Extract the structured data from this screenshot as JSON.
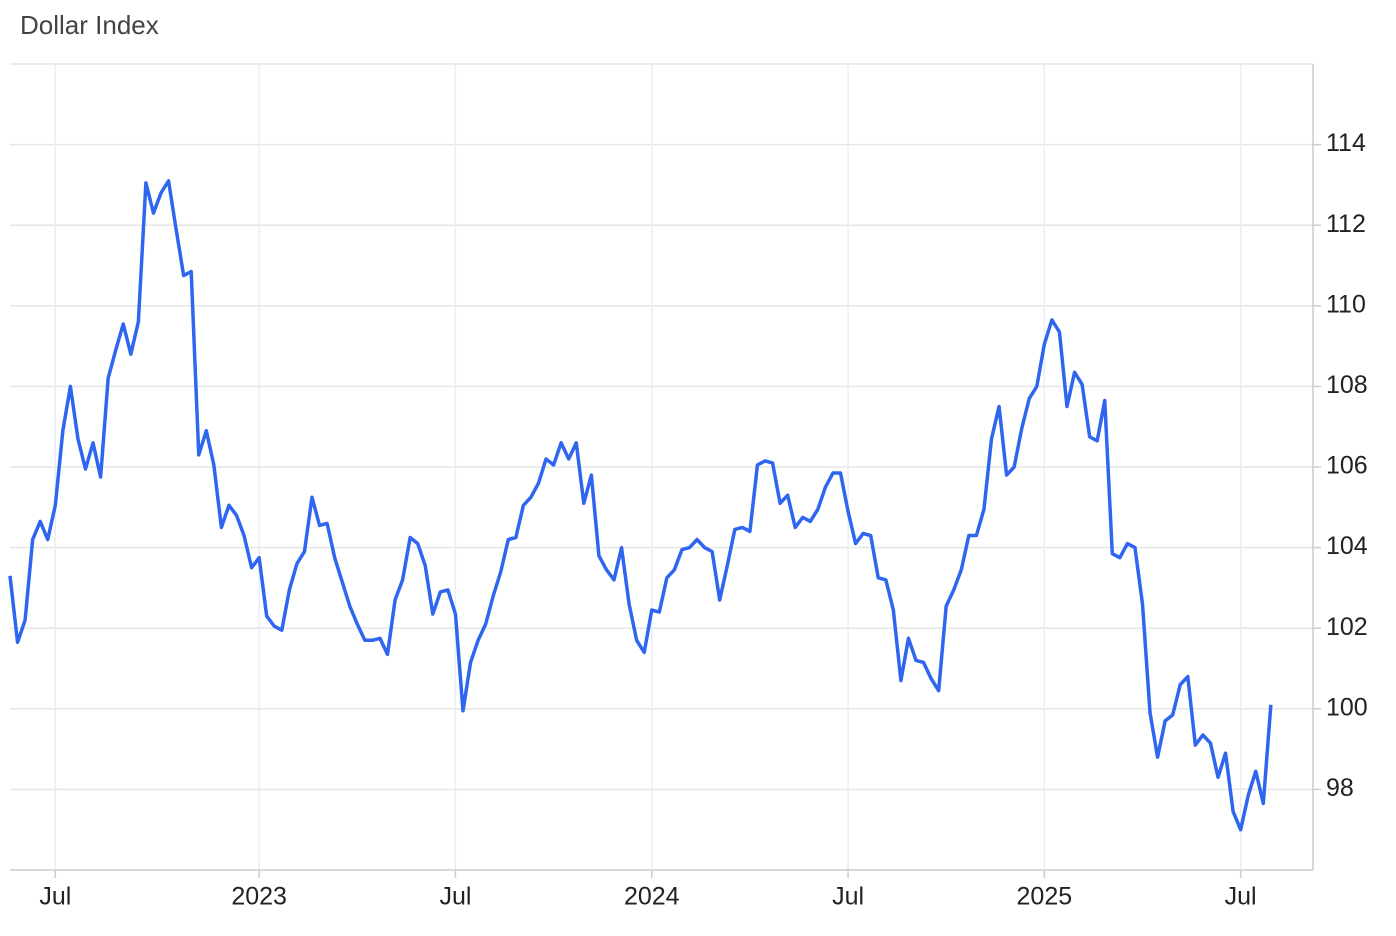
{
  "chart_data": {
    "type": "line",
    "title": "Dollar Index",
    "categories": [
      null,
      null,
      null,
      null,
      null,
      null,
      "Jul",
      null,
      null,
      null,
      null,
      null,
      null,
      null,
      null,
      null,
      null,
      null,
      null,
      null,
      null,
      null,
      null,
      null,
      null,
      null,
      null,
      null,
      null,
      null,
      null,
      null,
      null,
      "2023",
      null,
      null,
      null,
      null,
      null,
      null,
      null,
      null,
      null,
      null,
      null,
      null,
      null,
      null,
      null,
      null,
      null,
      null,
      null,
      null,
      null,
      null,
      null,
      null,
      null,
      "Jul",
      null,
      null,
      null,
      null,
      null,
      null,
      null,
      null,
      null,
      null,
      null,
      null,
      null,
      null,
      null,
      null,
      null,
      null,
      null,
      null,
      null,
      null,
      null,
      null,
      null,
      "2024",
      null,
      null,
      null,
      null,
      null,
      null,
      null,
      null,
      null,
      null,
      null,
      null,
      null,
      null,
      null,
      null,
      null,
      null,
      null,
      null,
      null,
      null,
      null,
      null,
      null,
      "Jul",
      null,
      null,
      null,
      null,
      null,
      null,
      null,
      null,
      null,
      null,
      null,
      null,
      null,
      null,
      null,
      null,
      null,
      null,
      null,
      null,
      null,
      null,
      null,
      null,
      null,
      "2025",
      null,
      null,
      null,
      null,
      null,
      null,
      null,
      null,
      null,
      null,
      null,
      null,
      null,
      null,
      null,
      null,
      null,
      null,
      null,
      null,
      null,
      null,
      null,
      null,
      null,
      "Jul",
      null,
      null,
      null,
      null
    ],
    "values": [
      103.3,
      101.65,
      102.2,
      104.2,
      104.65,
      104.2,
      105.05,
      106.9,
      108.0,
      106.7,
      105.95,
      106.6,
      105.75,
      108.2,
      108.9,
      109.55,
      108.8,
      109.6,
      113.05,
      112.3,
      112.8,
      113.1,
      111.9,
      110.75,
      110.85,
      106.3,
      106.9,
      106.05,
      104.5,
      105.05,
      104.8,
      104.3,
      103.5,
      103.75,
      102.3,
      102.05,
      101.95,
      102.95,
      103.6,
      103.9,
      105.25,
      104.55,
      104.6,
      103.75,
      103.15,
      102.55,
      102.1,
      101.7,
      101.7,
      101.75,
      101.35,
      102.7,
      103.2,
      104.25,
      104.1,
      103.55,
      102.35,
      102.9,
      102.95,
      102.35,
      99.95,
      101.15,
      101.7,
      102.1,
      102.8,
      103.4,
      104.2,
      104.25,
      105.05,
      105.25,
      105.6,
      106.2,
      106.05,
      106.6,
      106.2,
      106.6,
      105.1,
      105.8,
      103.8,
      103.45,
      103.2,
      104.0,
      102.6,
      101.7,
      101.4,
      102.45,
      102.4,
      103.25,
      103.45,
      103.95,
      104.0,
      104.2,
      104.0,
      103.9,
      102.7,
      103.55,
      104.45,
      104.5,
      104.4,
      106.05,
      106.15,
      106.1,
      105.1,
      105.3,
      104.5,
      104.75,
      104.65,
      104.95,
      105.5,
      105.85,
      105.85,
      104.9,
      104.1,
      104.35,
      104.3,
      103.25,
      103.2,
      102.45,
      100.7,
      101.75,
      101.2,
      101.15,
      100.75,
      100.45,
      102.55,
      102.95,
      103.45,
      104.3,
      104.3,
      104.95,
      106.7,
      107.5,
      105.8,
      106.0,
      106.95,
      107.7,
      108.0,
      109.05,
      109.65,
      109.35,
      107.5,
      108.35,
      108.05,
      106.75,
      106.65,
      107.65,
      103.85,
      103.75,
      104.1,
      104.0,
      102.6,
      99.9,
      98.8,
      99.7,
      99.85,
      100.6,
      100.8,
      99.1,
      99.35,
      99.15,
      98.3,
      98.9,
      97.45,
      97.0,
      97.85,
      98.45,
      97.65,
      100.1
    ],
    "color": "#2f66f0",
    "ylim": [
      96,
      116
    ],
    "yticks": [
      98,
      100,
      102,
      104,
      106,
      108,
      110,
      112,
      114
    ],
    "grid": true
  }
}
